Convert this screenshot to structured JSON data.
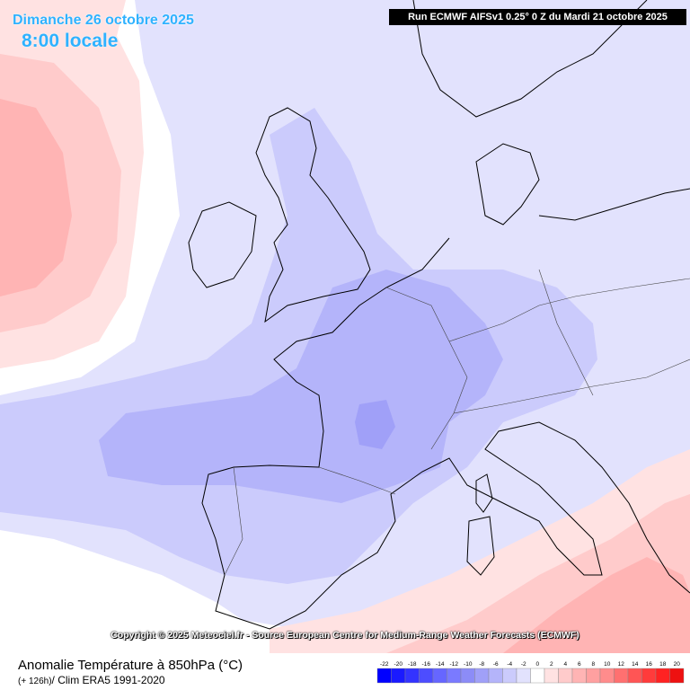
{
  "header": {
    "date": "Dimanche 26 octobre 2025",
    "time": "8:00 locale",
    "run": "Run ECMWF AIFSv1 0.25° 0 Z du Mardi 21 octobre 2025"
  },
  "copyright": "Copyright © 2025 Meteociel.fr - Source European Centre for Medium-Range Weather Forecasts (ECMWF)",
  "footer": {
    "title": "Anomalie Température à 850hPa (°C)",
    "lead": "(+ 126h)",
    "subtitle": "/ Clim ERA5 1991-2020"
  },
  "legend": {
    "labels": [
      "-22",
      "-20",
      "-18",
      "-16",
      "-14",
      "-12",
      "-10",
      "-8",
      "-6",
      "-4",
      "-2",
      "0",
      "2",
      "4",
      "6",
      "8",
      "10",
      "12",
      "14",
      "16",
      "18",
      "20"
    ],
    "colors": [
      "#0000ff",
      "#1a1aff",
      "#3333ff",
      "#4d4dff",
      "#6666ff",
      "#7a7aff",
      "#8c8cf7",
      "#a0a0f8",
      "#b4b4fa",
      "#cbcbfc",
      "#e2e2fd",
      "#ffffff",
      "#ffe2e2",
      "#ffcbcb",
      "#ffb4b4",
      "#ffa0a0",
      "#ff8c8c",
      "#ff7070",
      "#ff5555",
      "#ff3b3b",
      "#ff2222",
      "#ee1111"
    ]
  },
  "map": {
    "colors": {
      "sea": "#ffffff",
      "anomaly_-2": "#e2e2fd",
      "anomaly_-4": "#cbcbfc",
      "anomaly_-6": "#b4b4fa",
      "anomaly_-8": "#a0a0f8",
      "anomaly_2": "#ffe2e2",
      "anomaly_4": "#ffcbcb",
      "anomaly_6": "#ffb4b4",
      "coastline": "#000000"
    }
  }
}
